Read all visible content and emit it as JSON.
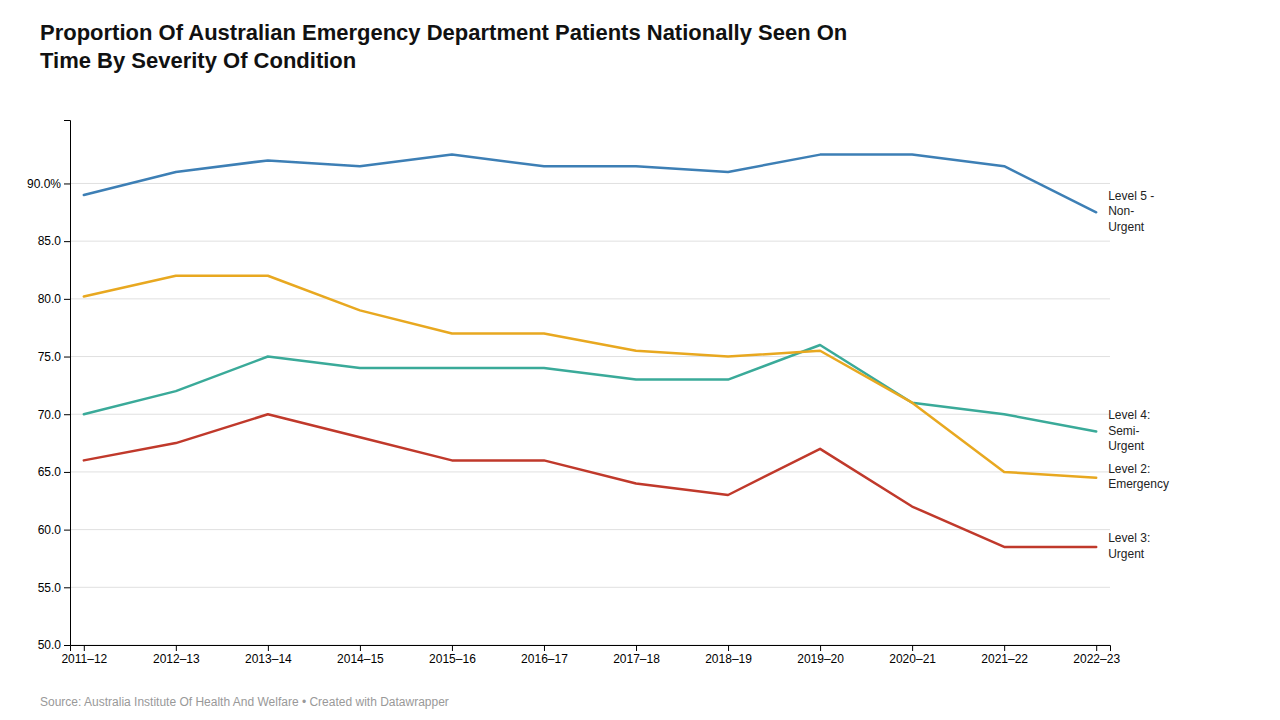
{
  "chart_data": {
    "type": "line",
    "title": "Proportion Of Australian Emergency Department Patients Nationally Seen On\nTime By Severity Of Condition",
    "source": "Source: Australia Institute Of Health And Welfare • Created with Datawrapper",
    "categories": [
      "2011–12",
      "2012–13",
      "2013–14",
      "2014–15",
      "2015–16",
      "2016–17",
      "2017–18",
      "2018–19",
      "2019–20",
      "2020–21",
      "2021–22",
      "2022–23"
    ],
    "series": [
      {
        "name": "Level 5 -\nNon-\nUrgent",
        "color": "#3d7fb5",
        "values": [
          89.0,
          91.0,
          92.0,
          91.5,
          92.5,
          91.5,
          91.5,
          91.0,
          92.5,
          92.5,
          91.5,
          87.5
        ]
      },
      {
        "name": "Level 4:\nSemi-\nUrgent",
        "color": "#3aaa99",
        "values": [
          70.0,
          72.0,
          75.0,
          74.0,
          74.0,
          74.0,
          73.0,
          73.0,
          76.0,
          71.0,
          70.0,
          68.5
        ]
      },
      {
        "name": "Level 2:\nEmergency",
        "color": "#e8a820",
        "values": [
          80.2,
          82.0,
          82.0,
          79.0,
          77.0,
          77.0,
          75.5,
          75.0,
          75.5,
          71.0,
          65.0,
          64.5
        ]
      },
      {
        "name": "Level 3:\nUrgent",
        "color": "#c0392b",
        "values": [
          66.0,
          67.5,
          70.0,
          68.0,
          66.0,
          66.0,
          64.0,
          63.0,
          67.0,
          62.0,
          58.5,
          58.5
        ]
      }
    ],
    "ylim": [
      50.0,
      95.5
    ],
    "yticks": [
      {
        "value": 50.0,
        "label": "50.0"
      },
      {
        "value": 55.0,
        "label": "55.0"
      },
      {
        "value": 60.0,
        "label": "60.0"
      },
      {
        "value": 65.0,
        "label": "65.0"
      },
      {
        "value": 70.0,
        "label": "70.0"
      },
      {
        "value": 75.0,
        "label": "75.0"
      },
      {
        "value": 80.0,
        "label": "80.0"
      },
      {
        "value": 85.0,
        "label": "85.0"
      },
      {
        "value": 90.0,
        "label": "90.0%"
      }
    ],
    "grid": true
  }
}
